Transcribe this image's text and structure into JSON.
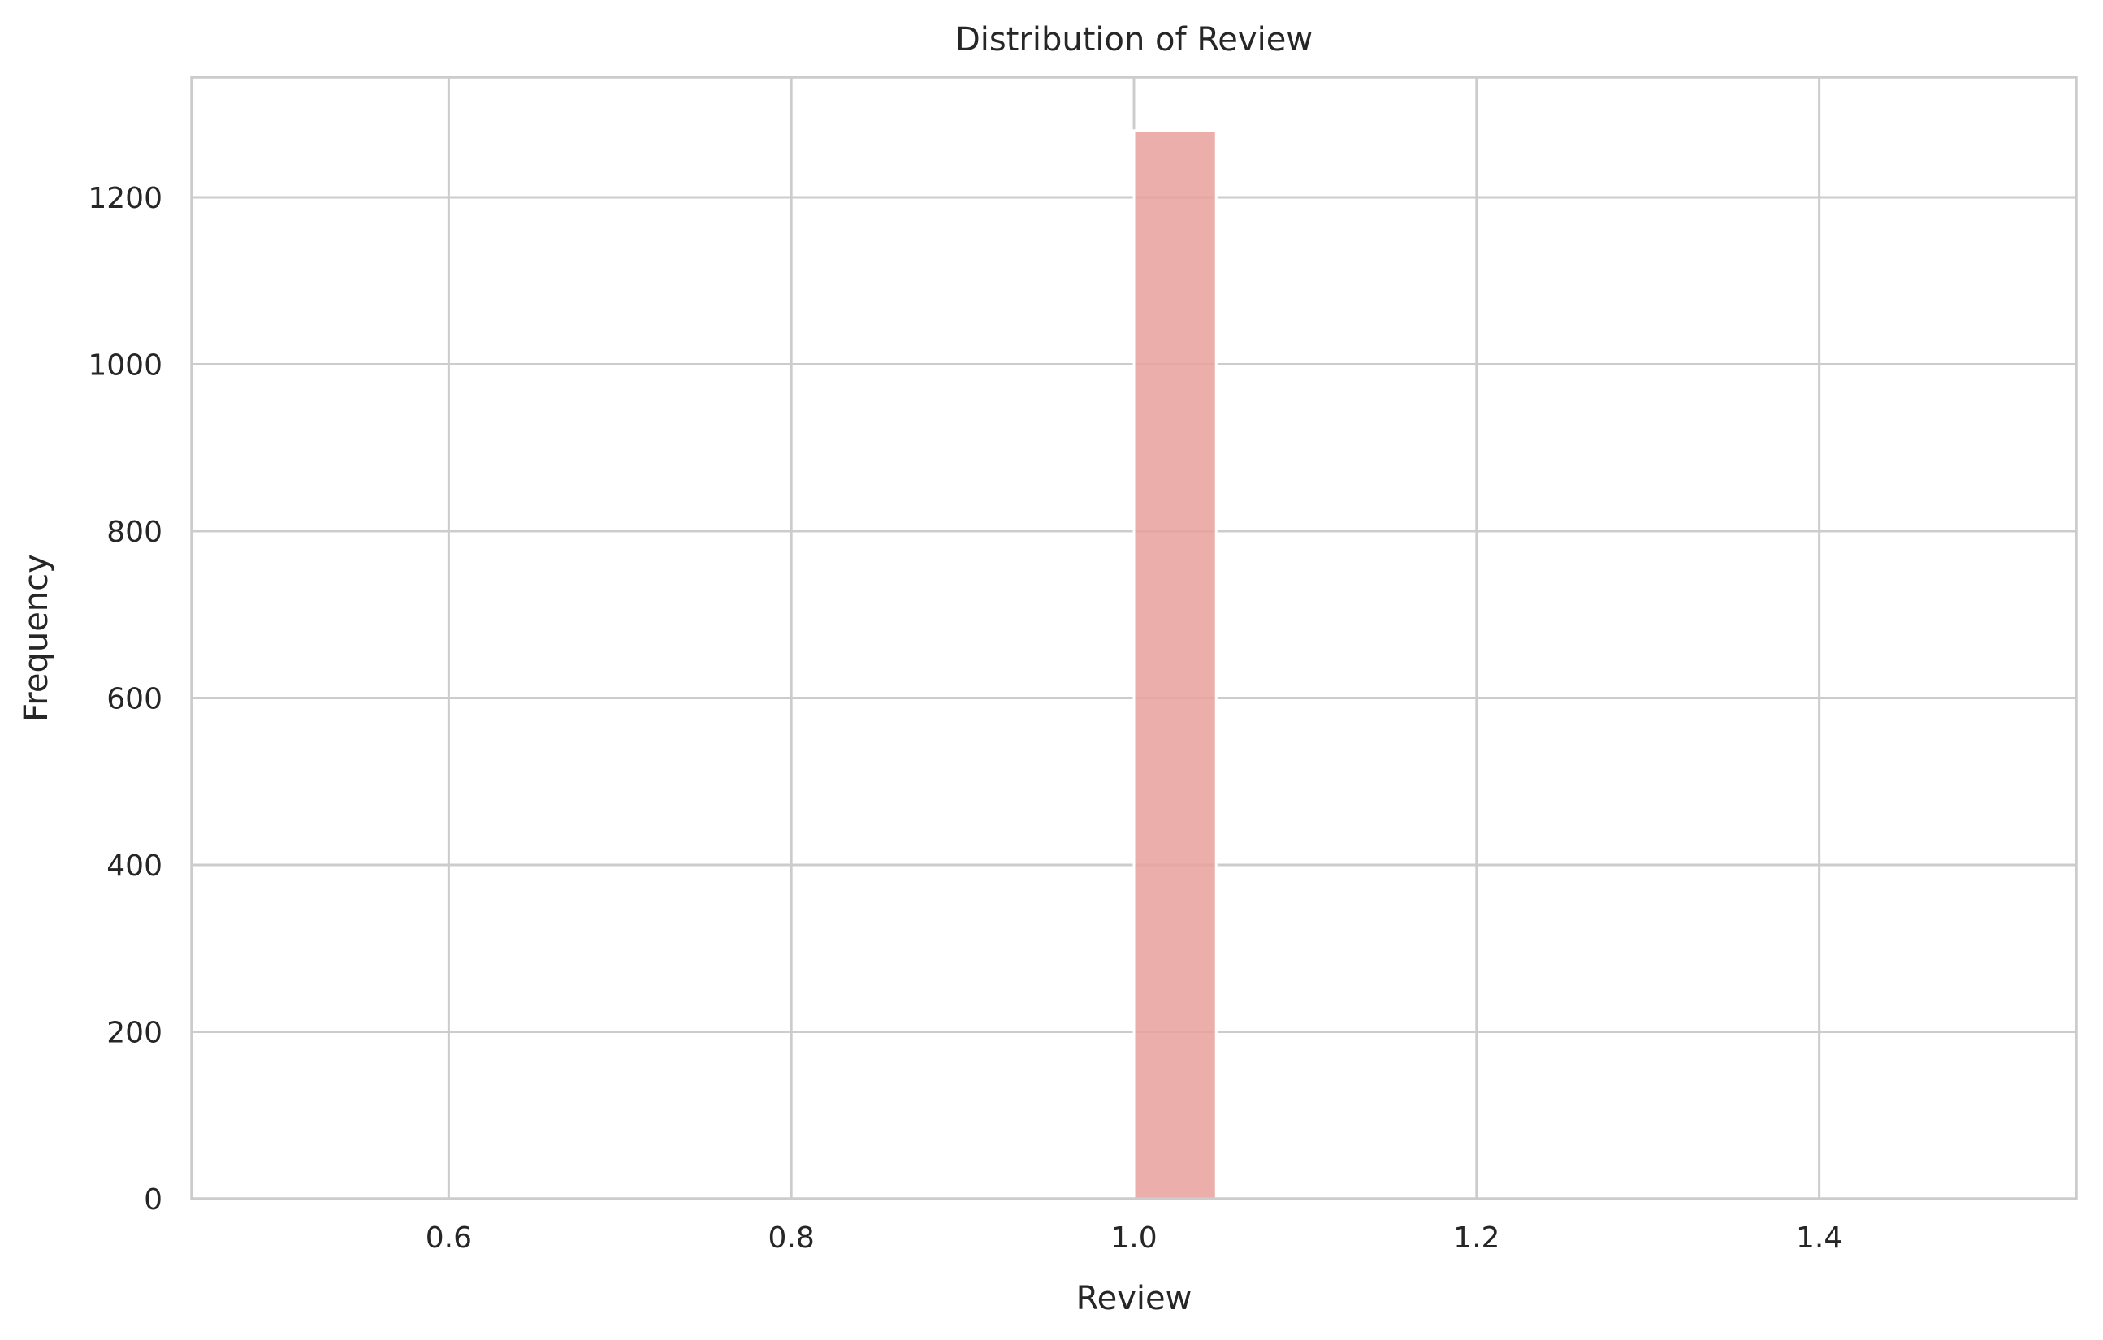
{
  "chart_data": {
    "type": "bar",
    "title": "Distribution of Review",
    "xlabel": "Review",
    "ylabel": "Frequency",
    "xlim": [
      0.45,
      1.55
    ],
    "ylim": [
      0,
      1344
    ],
    "x_ticks": [
      0.6,
      0.8,
      1.0,
      1.2,
      1.4
    ],
    "x_tick_labels": [
      "0.6",
      "0.8",
      "1.0",
      "1.2",
      "1.4"
    ],
    "y_ticks": [
      0,
      200,
      400,
      600,
      800,
      1000,
      1200
    ],
    "y_tick_labels": [
      "0",
      "200",
      "400",
      "600",
      "800",
      "1000",
      "1200"
    ],
    "bins": [
      {
        "x_start": 1.0,
        "x_end": 1.048,
        "count": 1280
      }
    ],
    "bar_color": "#e8a09b",
    "grid": true,
    "legend": "none"
  }
}
